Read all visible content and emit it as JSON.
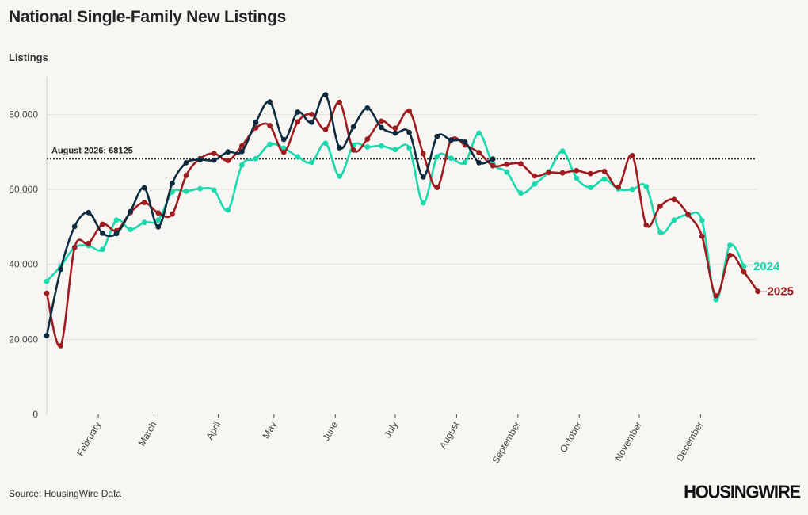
{
  "title": "National Single-Family New Listings",
  "source": {
    "prefix": "Source: ",
    "link_text": "HousingWire Data"
  },
  "logo_text": "HOUSINGWIRE",
  "colors": {
    "s2024": "#1ad9ad",
    "s2025": "#9e1c1f",
    "s2026": "#0d2b3e",
    "grid": "#e3e1dc",
    "ref": "#333333"
  },
  "chart_data": {
    "type": "line",
    "title": "National Single-Family New Listings",
    "ylabel": "Listings",
    "ylim": [
      0,
      90000
    ],
    "yticks": [
      0,
      20000,
      40000,
      60000,
      80000
    ],
    "ytick_labels": [
      "0",
      "20,000",
      "40,000",
      "60,000",
      "80,000"
    ],
    "xlim": [
      0,
      52
    ],
    "month_ticks": [
      {
        "label": "February",
        "x": 3.7
      },
      {
        "label": "March",
        "x": 7.7
      },
      {
        "label": "April",
        "x": 12.3
      },
      {
        "label": "May",
        "x": 16.3
      },
      {
        "label": "June",
        "x": 20.7
      },
      {
        "label": "July",
        "x": 25.0
      },
      {
        "label": "August",
        "x": 29.4
      },
      {
        "label": "September",
        "x": 33.8
      },
      {
        "label": "October",
        "x": 38.2
      },
      {
        "label": "November",
        "x": 42.5
      },
      {
        "label": "December",
        "x": 46.9
      }
    ],
    "reference_line": {
      "value": 68125,
      "label": "August 2026: 68125"
    },
    "series": [
      {
        "name": "2024",
        "color": "#1ad9ad",
        "values": [
          35500,
          39500,
          44500,
          45000,
          44000,
          51800,
          49300,
          51200,
          51800,
          59300,
          59500,
          60200,
          59800,
          54500,
          66500,
          68200,
          72000,
          71000,
          68700,
          67200,
          72300,
          63500,
          71800,
          71300,
          71600,
          70600,
          71000,
          56400,
          68700,
          68300,
          67200,
          75000,
          66800,
          64600,
          59000,
          61400,
          64700,
          70200,
          63000,
          60500,
          62700,
          60100,
          60000,
          60700,
          48600,
          51800,
          53200,
          51700,
          30600,
          45100,
          39500
        ],
        "end_label": "2024"
      },
      {
        "name": "2025",
        "color": "#9e1c1f",
        "values": [
          32300,
          18300,
          44500,
          45600,
          50700,
          49000,
          53800,
          56500,
          53700,
          53400,
          63700,
          68200,
          69600,
          67700,
          71600,
          76400,
          77000,
          69900,
          78000,
          80000,
          76000,
          83200,
          70500,
          73400,
          78200,
          76300,
          80900,
          69500,
          60500,
          73200,
          71800,
          69800,
          66300,
          66700,
          66800,
          63600,
          64500,
          64400,
          65000,
          64200,
          64800,
          60600,
          69000,
          50500,
          55500,
          57300,
          53300,
          47500,
          31600,
          42400,
          38000,
          32800
        ],
        "end_label": "2025"
      },
      {
        "name": "2026",
        "color": "#0d2b3e",
        "values": [
          21000,
          38700,
          50100,
          53800,
          48300,
          48200,
          54100,
          60400,
          50000,
          61600,
          67100,
          67900,
          67800,
          70000,
          70100,
          77900,
          83300,
          73300,
          80600,
          77900,
          85200,
          71100,
          76700,
          81700,
          76500,
          75000,
          75200,
          63300,
          74100,
          73100,
          72600,
          67100,
          68100
        ]
      }
    ]
  }
}
